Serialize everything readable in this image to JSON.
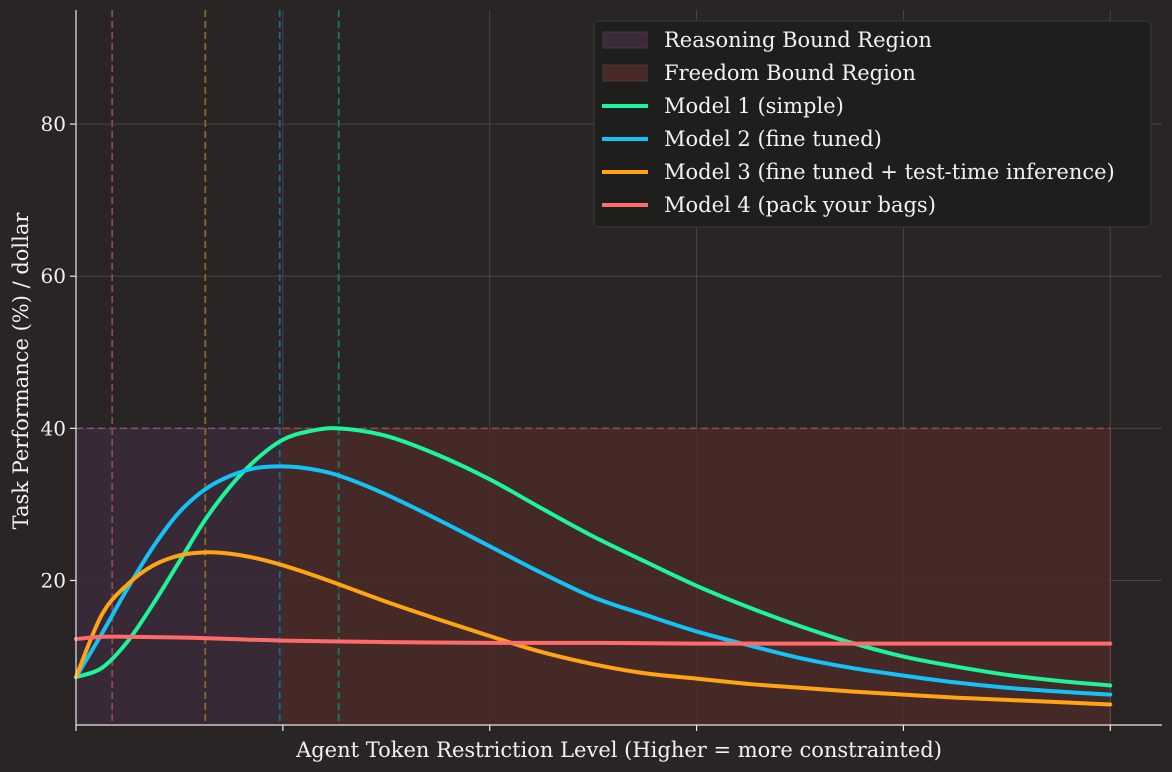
{
  "chart_data": {
    "type": "line",
    "title": "",
    "xlabel": "Agent Token Restriction Level (Higher = more constrainted)",
    "ylabel": "Task Performance (%) / dollar",
    "xlim": [
      0,
      1.05
    ],
    "ylim": [
      1,
      95
    ],
    "x_ticks": [
      0,
      0.2,
      0.4,
      0.6,
      0.8,
      1.0
    ],
    "x_tick_labels": [
      "",
      "",
      "",
      "",
      "",
      ""
    ],
    "y_ticks": [
      20,
      40,
      60,
      80
    ],
    "y_tick_labels": [
      "20",
      "40",
      "60",
      "80"
    ],
    "grid": true,
    "legend_position": "top-right",
    "regions": [
      {
        "name": "Reasoning Bound Region",
        "x": [
          0,
          0.2
        ],
        "y": [
          0,
          40
        ],
        "color": "#3a2a3a"
      },
      {
        "name": "Freedom Bound Region",
        "x": [
          0.2,
          1.0
        ],
        "y": [
          0,
          40
        ],
        "color": "#4a2a28"
      }
    ],
    "threshold_line": {
      "y": 40,
      "x": [
        0,
        1.0
      ]
    },
    "vlines": [
      {
        "x": 0.035,
        "color": "#8a4a5a"
      },
      {
        "x": 0.125,
        "color": "#8a6a2a"
      },
      {
        "x": 0.197,
        "color": "#1a6a8a"
      },
      {
        "x": 0.254,
        "color": "#1a7a5a"
      }
    ],
    "series": [
      {
        "name": "Model 1 (simple)",
        "color": "#1cf59a",
        "x": [
          0,
          0.025,
          0.05,
          0.075,
          0.1,
          0.125,
          0.15,
          0.175,
          0.2,
          0.225,
          0.254,
          0.3,
          0.35,
          0.4,
          0.45,
          0.5,
          0.55,
          0.6,
          0.65,
          0.7,
          0.75,
          0.8,
          0.85,
          0.9,
          0.95,
          1.0
        ],
        "values": [
          7.3,
          8.5,
          12,
          17,
          22.5,
          28,
          32.5,
          36,
          38.5,
          39.6,
          40,
          39,
          36.5,
          33.3,
          29.5,
          25.8,
          22.5,
          19.3,
          16.5,
          14,
          11.8,
          10,
          8.7,
          7.6,
          6.8,
          6.2
        ]
      },
      {
        "name": "Model 2 (fine tuned)",
        "color": "#14c3f5",
        "x": [
          0,
          0.025,
          0.05,
          0.075,
          0.1,
          0.125,
          0.15,
          0.175,
          0.2,
          0.225,
          0.254,
          0.3,
          0.35,
          0.4,
          0.45,
          0.5,
          0.55,
          0.6,
          0.65,
          0.7,
          0.75,
          0.8,
          0.85,
          0.9,
          0.95,
          1.0
        ],
        "values": [
          7.3,
          13,
          19,
          24.5,
          29,
          32,
          33.8,
          34.8,
          35,
          34.7,
          33.8,
          31.3,
          28,
          24.5,
          21,
          17.8,
          15.5,
          13.3,
          11.5,
          9.8,
          8.5,
          7.5,
          6.6,
          5.9,
          5.4,
          5
        ]
      },
      {
        "name": "Model 3 (fine tuned + test-time inference)",
        "color": "#ffa514",
        "x": [
          0,
          0.025,
          0.05,
          0.075,
          0.1,
          0.125,
          0.15,
          0.175,
          0.2,
          0.225,
          0.254,
          0.3,
          0.35,
          0.4,
          0.45,
          0.5,
          0.55,
          0.6,
          0.65,
          0.7,
          0.75,
          0.8,
          0.85,
          0.9,
          0.95,
          1.0
        ],
        "values": [
          7.3,
          15.5,
          19.5,
          22,
          23.3,
          23.7,
          23.5,
          22.9,
          22,
          20.9,
          19.5,
          17.2,
          14.9,
          12.7,
          10.6,
          9,
          7.8,
          7.1,
          6.4,
          5.9,
          5.4,
          5,
          4.6,
          4.3,
          4,
          3.7
        ]
      },
      {
        "name": "Model 4 (pack your bags)",
        "color": "#ff6b6b",
        "x": [
          0,
          0.025,
          0.05,
          0.1,
          0.15,
          0.2,
          0.3,
          0.4,
          0.5,
          0.6,
          0.7,
          0.8,
          0.9,
          1.0
        ],
        "values": [
          12.3,
          12.6,
          12.6,
          12.5,
          12.3,
          12.1,
          11.9,
          11.8,
          11.8,
          11.7,
          11.7,
          11.7,
          11.7,
          11.7
        ]
      }
    ]
  }
}
